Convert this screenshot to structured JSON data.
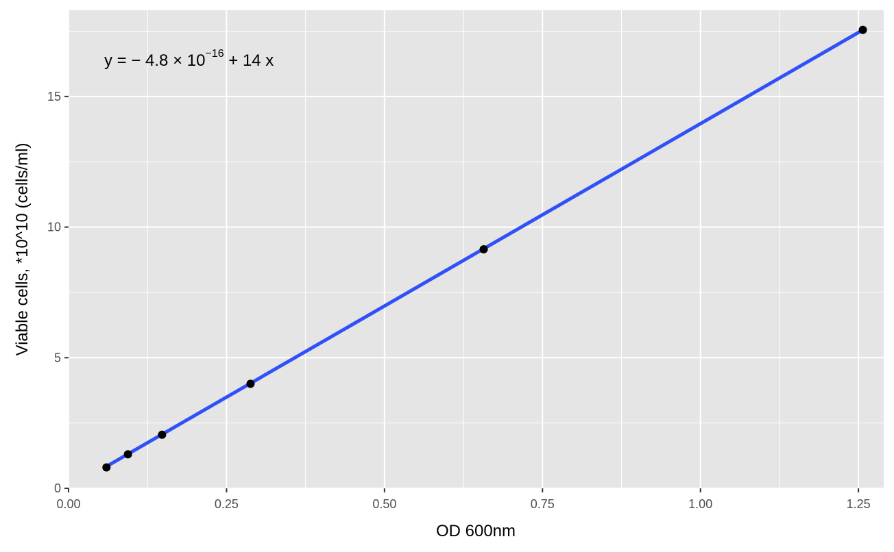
{
  "chart_data": {
    "type": "scatter",
    "xlabel": "OD 600nm",
    "ylabel": "Viable cells, *10^10 (cells/ml)",
    "xlim": [
      0.0,
      1.29
    ],
    "ylim": [
      0,
      18.3
    ],
    "x_ticks": [
      0.0,
      0.25,
      0.5,
      0.75,
      1.0,
      1.25
    ],
    "x_tick_labels": [
      "0.00",
      "0.25",
      "0.50",
      "0.75",
      "1.00",
      "1.25"
    ],
    "y_ticks": [
      0,
      5,
      10,
      15
    ],
    "y_tick_labels": [
      "0",
      "5",
      "10",
      "15"
    ],
    "grid": true,
    "points": [
      {
        "x": 0.06,
        "y": 0.8
      },
      {
        "x": 0.094,
        "y": 1.3
      },
      {
        "x": 0.148,
        "y": 2.05
      },
      {
        "x": 0.288,
        "y": 4.0
      },
      {
        "x": 0.657,
        "y": 9.15
      },
      {
        "x": 1.257,
        "y": 17.55
      }
    ],
    "fit_line": {
      "x_range": [
        0.06,
        1.257
      ],
      "intercept": -4.8e-16,
      "slope": 13.96
    },
    "annotation": {
      "prefix": "y = − 4.8 × 10",
      "exponent": "−16",
      "suffix": " + 14 x"
    },
    "colors": {
      "panel": "#e5e5e5",
      "grid": "#ffffff",
      "line": "#3050f8",
      "point": "#000000"
    }
  }
}
